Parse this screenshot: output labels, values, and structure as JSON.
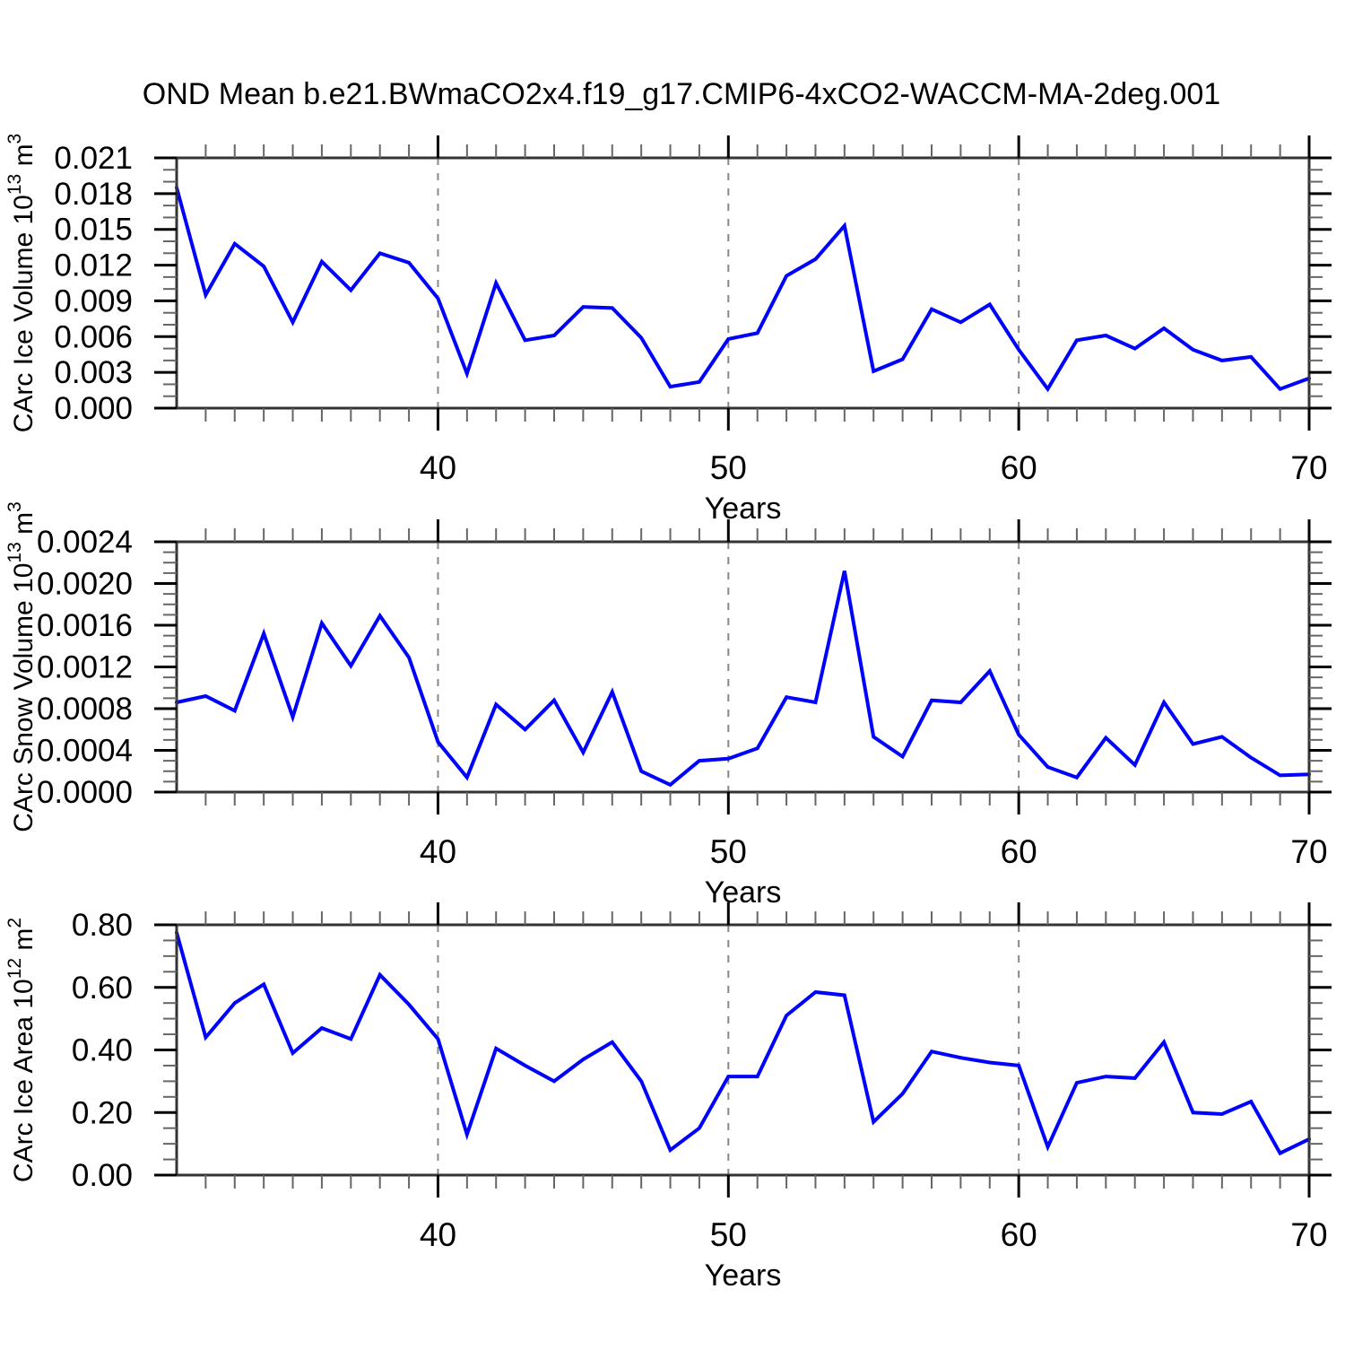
{
  "title": "OND Mean b.e21.BWmaCO2x4.f19_g17.CMIP6-4xCO2-WACCM-MA-2deg.001",
  "style": {
    "background": "#ffffff",
    "axis_color": "#000000",
    "frame_color": "#333333",
    "minor_tick_color": "#666666",
    "grid_color": "#888888",
    "text_color": "#000000",
    "line_color": "#0000ff"
  },
  "chart_data": [
    {
      "type": "line",
      "panel": "ice-volume",
      "ylabel_parts": [
        {
          "t": "CArc Ice Volume 10"
        },
        {
          "t": "13",
          "sup": true
        },
        {
          "t": " m"
        },
        {
          "t": "3",
          "sup": true
        }
      ],
      "xlabel": "Years",
      "legend": "none",
      "grid": "x-dashed",
      "xlim": [
        31,
        70
      ],
      "ylim": [
        0,
        0.021
      ],
      "ytick_step": 0.003,
      "ytick_labels": [
        "0.000",
        "0.003",
        "0.006",
        "0.009",
        "0.012",
        "0.015",
        "0.018",
        "0.021"
      ],
      "yminor_per_major": 2,
      "xtick_major": [
        40,
        50,
        60,
        70
      ],
      "xtick_labels": [
        "40",
        "50",
        "60",
        "70"
      ],
      "grid_x": [
        40,
        50,
        60
      ],
      "x": [
        31,
        32,
        33,
        34,
        35,
        36,
        37,
        38,
        39,
        40,
        41,
        42,
        43,
        44,
        45,
        46,
        47,
        48,
        49,
        50,
        51,
        52,
        53,
        54,
        55,
        56,
        57,
        58,
        59,
        60,
        61,
        62,
        63,
        64,
        65,
        66,
        67,
        68,
        69,
        70
      ],
      "values": [
        0.0185,
        0.0095,
        0.0138,
        0.0119,
        0.0072,
        0.0123,
        0.0099,
        0.013,
        0.0122,
        0.0092,
        0.0029,
        0.0105,
        0.0057,
        0.0061,
        0.0085,
        0.0084,
        0.0059,
        0.0018,
        0.0022,
        0.0058,
        0.0063,
        0.0111,
        0.0125,
        0.0153,
        0.0031,
        0.0041,
        0.0083,
        0.0072,
        0.0087,
        0.0049,
        0.0016,
        0.0057,
        0.0061,
        0.005,
        0.0067,
        0.0049,
        0.004,
        0.0043,
        0.0016,
        0.0025
      ]
    },
    {
      "type": "line",
      "panel": "snow-volume",
      "ylabel_parts": [
        {
          "t": "CArc Snow Volume 10"
        },
        {
          "t": "13",
          "sup": true
        },
        {
          "t": " m"
        },
        {
          "t": "3",
          "sup": true
        }
      ],
      "xlabel": "Years",
      "legend": "none",
      "grid": "x-dashed",
      "xlim": [
        31,
        70
      ],
      "ylim": [
        0,
        0.0024
      ],
      "ytick_step": 0.0004,
      "ytick_labels": [
        "0.0000",
        "0.0004",
        "0.0008",
        "0.0012",
        "0.0016",
        "0.0020",
        "0.0024"
      ],
      "yminor_per_major": 3,
      "xtick_major": [
        40,
        50,
        60,
        70
      ],
      "xtick_labels": [
        "40",
        "50",
        "60",
        "70"
      ],
      "grid_x": [
        40,
        50,
        60
      ],
      "x": [
        31,
        32,
        33,
        34,
        35,
        36,
        37,
        38,
        39,
        40,
        41,
        42,
        43,
        44,
        45,
        46,
        47,
        48,
        49,
        50,
        51,
        52,
        53,
        54,
        55,
        56,
        57,
        58,
        59,
        60,
        61,
        62,
        63,
        64,
        65,
        66,
        67,
        68,
        69,
        70
      ],
      "values": [
        0.00086,
        0.00092,
        0.00078,
        0.00152,
        0.00072,
        0.00162,
        0.00121,
        0.00169,
        0.00129,
        0.00048,
        0.00014,
        0.00084,
        0.0006,
        0.00088,
        0.00038,
        0.00096,
        0.0002,
        7e-05,
        0.0003,
        0.00032,
        0.00042,
        0.00091,
        0.00086,
        0.00212,
        0.00053,
        0.00034,
        0.00088,
        0.00086,
        0.00116,
        0.00055,
        0.00024,
        0.00014,
        0.00052,
        0.00026,
        0.00086,
        0.00046,
        0.00053,
        0.00033,
        0.00016,
        0.00017
      ]
    },
    {
      "type": "line",
      "panel": "ice-area",
      "ylabel_parts": [
        {
          "t": "CArc Ice Area 10"
        },
        {
          "t": "12",
          "sup": true
        },
        {
          "t": " m"
        },
        {
          "t": "2",
          "sup": true
        }
      ],
      "xlabel": "Years",
      "legend": "none",
      "grid": "x-dashed",
      "xlim": [
        31,
        70
      ],
      "ylim": [
        0,
        0.8
      ],
      "ytick_step": 0.2,
      "ytick_labels": [
        "0.00",
        "0.20",
        "0.40",
        "0.60",
        "0.80"
      ],
      "yminor_per_major": 3,
      "xtick_major": [
        40,
        50,
        60,
        70
      ],
      "xtick_labels": [
        "40",
        "50",
        "60",
        "70"
      ],
      "grid_x": [
        40,
        50,
        60
      ],
      "x": [
        31,
        32,
        33,
        34,
        35,
        36,
        37,
        38,
        39,
        40,
        41,
        42,
        43,
        44,
        45,
        46,
        47,
        48,
        49,
        50,
        51,
        52,
        53,
        54,
        55,
        56,
        57,
        58,
        59,
        60,
        61,
        62,
        63,
        64,
        65,
        66,
        67,
        68,
        69,
        70
      ],
      "values": [
        0.775,
        0.44,
        0.55,
        0.61,
        0.39,
        0.47,
        0.435,
        0.64,
        0.545,
        0.435,
        0.13,
        0.405,
        0.35,
        0.3,
        0.37,
        0.425,
        0.3,
        0.08,
        0.15,
        0.315,
        0.315,
        0.51,
        0.585,
        0.575,
        0.17,
        0.26,
        0.395,
        0.375,
        0.36,
        0.35,
        0.09,
        0.295,
        0.315,
        0.31,
        0.425,
        0.2,
        0.195,
        0.235,
        0.07,
        0.115
      ]
    }
  ]
}
